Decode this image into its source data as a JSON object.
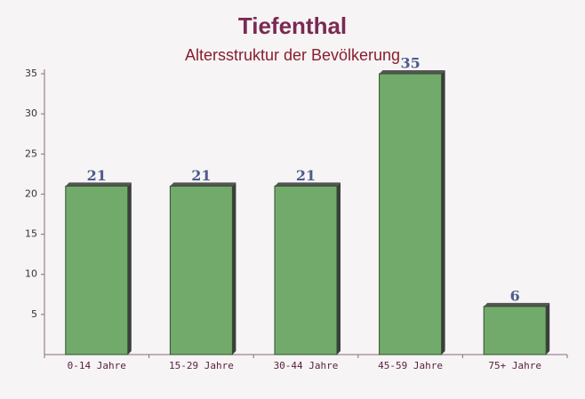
{
  "chart_data": {
    "type": "bar",
    "title": "Tiefenthal",
    "subtitle": "Altersstruktur der Bevölkerung",
    "categories": [
      "0-14 Jahre",
      "15-29 Jahre",
      "30-44 Jahre",
      "45-59 Jahre",
      "75+ Jahre"
    ],
    "values": [
      21,
      21,
      21,
      35,
      6
    ],
    "color": "#6aa564",
    "ylim": [
      0,
      35
    ],
    "yticks": [
      5,
      10,
      15,
      20,
      25,
      30,
      35
    ]
  }
}
